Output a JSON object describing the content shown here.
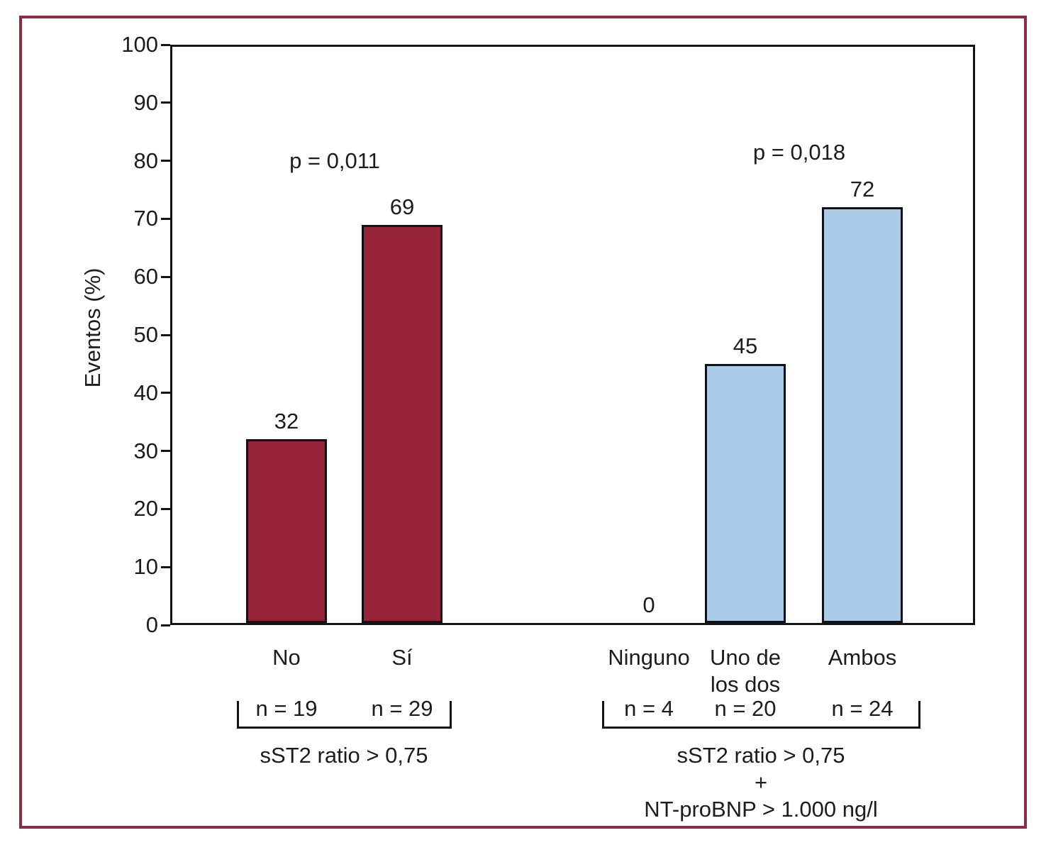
{
  "chart_data": {
    "type": "bar",
    "title": "",
    "ylabel": "Eventos (%)",
    "ylim": [
      0,
      100
    ],
    "yticks": [
      0,
      10,
      20,
      30,
      40,
      50,
      60,
      70,
      80,
      90,
      100
    ],
    "grid": false,
    "legend": "none",
    "groups": [
      {
        "p_label": "p = 0,011",
        "bar_color": "#972339",
        "caption_lines": [
          "sST2 ratio > 0,75"
        ],
        "bars": [
          {
            "category": "No",
            "value": 32,
            "n_label": "n = 19"
          },
          {
            "category": "Sí",
            "value": 69,
            "n_label": "n = 29"
          }
        ]
      },
      {
        "p_label": "p = 0,018",
        "bar_color": "#abcce9",
        "caption_lines": [
          "sST2 ratio > 0,75",
          "+",
          "NT-proBNP > 1.000 ng/l"
        ],
        "bars": [
          {
            "category": "Ninguno",
            "value": 0,
            "n_label": "n = 4"
          },
          {
            "category": "Uno de\nlos dos",
            "value": 45,
            "n_label": "n = 20"
          },
          {
            "category": "Ambos",
            "value": 72,
            "n_label": "n = 24"
          }
        ]
      }
    ],
    "colors": {
      "red_bar": "#972339",
      "blue_bar": "#abcce9",
      "frame": "#8b2b44",
      "axis": "#141414"
    }
  }
}
